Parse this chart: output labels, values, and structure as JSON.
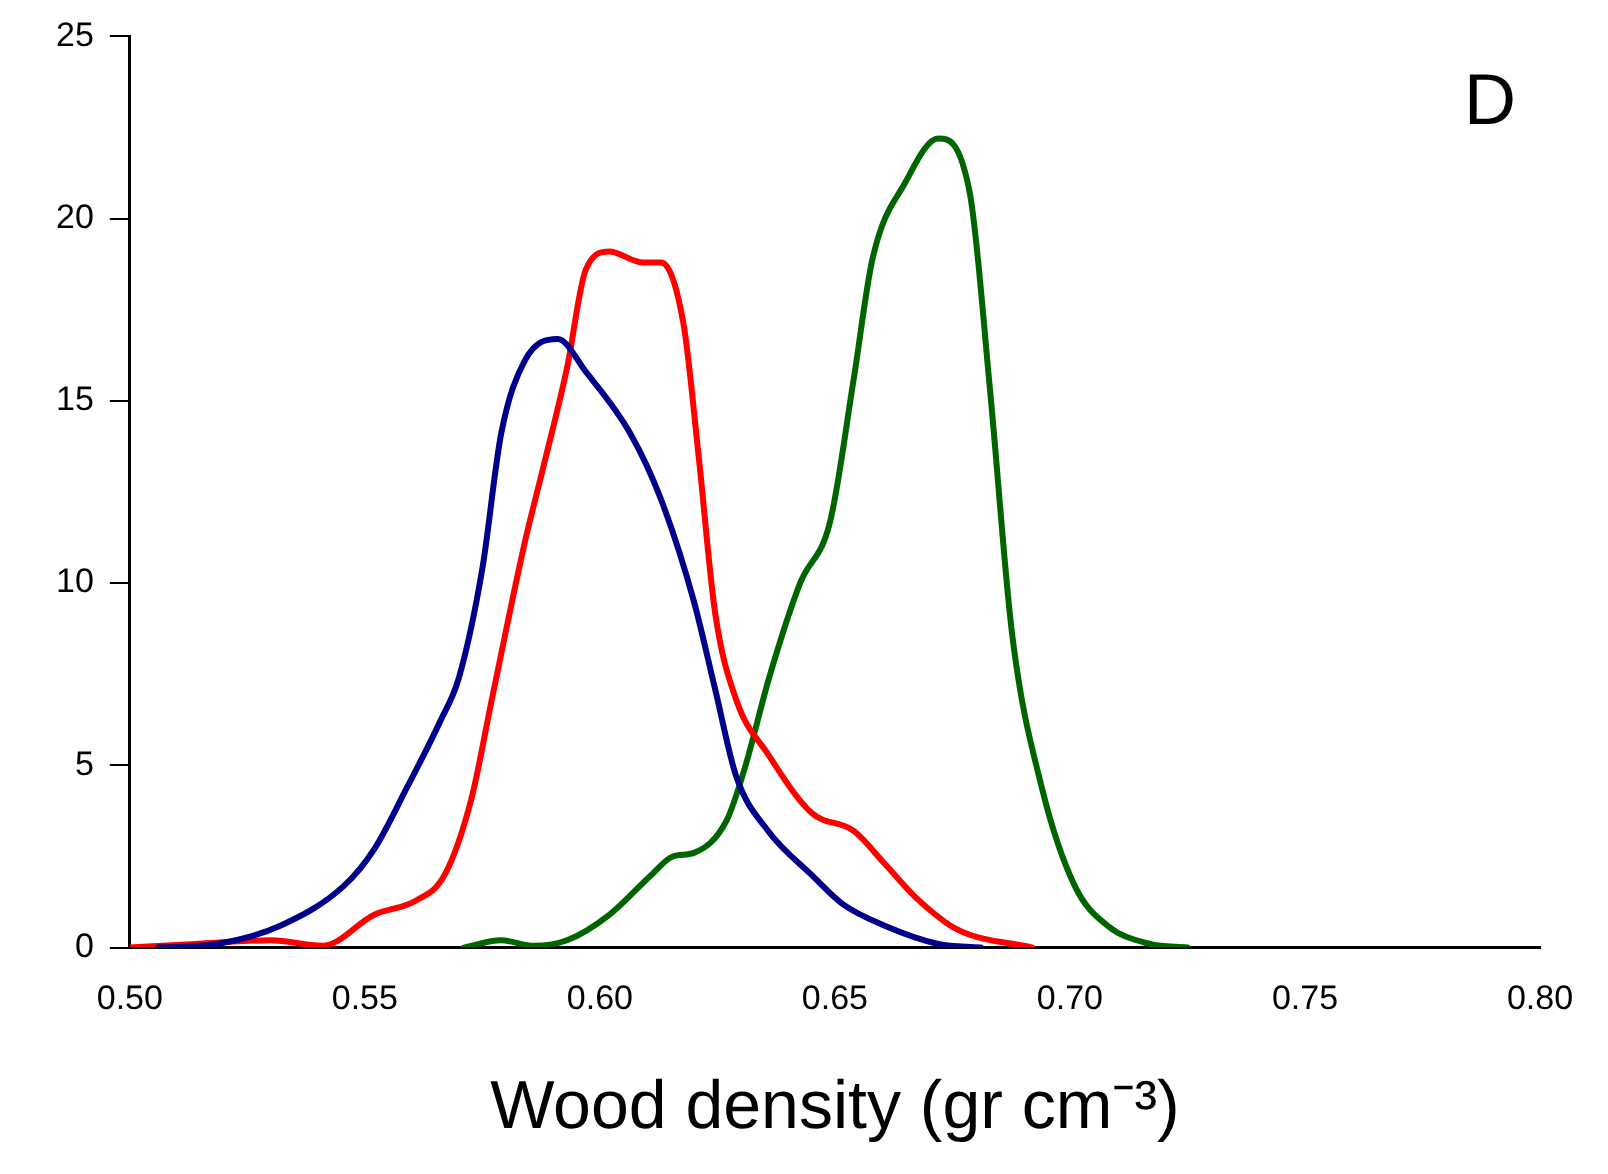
{
  "chart_data": {
    "type": "line",
    "xlabel": "Wood density (gr cm⁻³)",
    "annotations": [
      "D"
    ],
    "xlim": [
      0.5,
      0.8
    ],
    "xticks": [
      {
        "value": 0.5,
        "label": "0.50"
      },
      {
        "value": 0.55,
        "label": "0.55"
      },
      {
        "value": 0.6,
        "label": "0.60"
      },
      {
        "value": 0.65,
        "label": "0.65"
      },
      {
        "value": 0.7,
        "label": "0.70"
      },
      {
        "value": 0.75,
        "label": "0.75"
      },
      {
        "value": 0.8,
        "label": "0.80"
      }
    ],
    "ylim": [
      0,
      25
    ],
    "yticks": [
      0,
      5,
      10,
      15,
      20,
      25
    ],
    "grid": false,
    "legend": false,
    "marker": "none",
    "line_style": "solid",
    "series": [
      {
        "color": "#00008b",
        "x": [
          0.506,
          0.5185,
          0.532,
          0.5456,
          0.552,
          0.559,
          0.566,
          0.57,
          0.575,
          0.579,
          0.584,
          0.591,
          0.597,
          0.6065,
          0.613,
          0.62,
          0.6245,
          0.629,
          0.6358,
          0.645,
          0.6516,
          0.6606,
          0.672,
          0.681
        ],
        "values": [
          0,
          0.1,
          0.6,
          1.7,
          2.7,
          4.4,
          6.2,
          7.4,
          10.4,
          14.1,
          16.1,
          16.7,
          15.8,
          14.1,
          12.3,
          9.5,
          7.1,
          4.7,
          3.2,
          2,
          1.2,
          0.6,
          0.1,
          0
        ]
      },
      {
        "color": "#ff0000",
        "x": [
          0.5,
          0.514,
          0.53,
          0.541,
          0.552,
          0.561,
          0.567,
          0.5727,
          0.577,
          0.584,
          0.588,
          0.593,
          0.597,
          0.602,
          0.609,
          0.613,
          0.6178,
          0.621,
          0.6245,
          0.629,
          0.6358,
          0.645,
          0.654,
          0.6606,
          0.667,
          0.676,
          0.692
        ],
        "values": [
          0,
          0.1,
          0.2,
          0.05,
          0.9,
          1.3,
          2,
          4.1,
          6.8,
          11.1,
          13.2,
          15.9,
          18.6,
          19.1,
          18.8,
          18.8,
          17.1,
          13.5,
          9.2,
          6.8,
          5.3,
          3.7,
          3.2,
          2.3,
          1.4,
          0.5,
          0
        ]
      },
      {
        "color": "#006400",
        "x": [
          0.571,
          0.579,
          0.586,
          0.593,
          0.602,
          0.611,
          0.6155,
          0.62,
          0.627,
          0.631,
          0.636,
          0.6426,
          0.649,
          0.654,
          0.658,
          0.665,
          0.672,
          0.6787,
          0.683,
          0.6877,
          0.694,
          0.701,
          0.708,
          0.717,
          0.725
        ],
        "values": [
          0,
          0.2,
          0.05,
          0.2,
          0.9,
          2,
          2.5,
          2.6,
          3.5,
          5,
          7.4,
          10,
          11.7,
          15.6,
          18.9,
          21,
          22.2,
          20.7,
          15.3,
          8.6,
          4.4,
          1.7,
          0.6,
          0.1,
          0
        ]
      }
    ]
  }
}
